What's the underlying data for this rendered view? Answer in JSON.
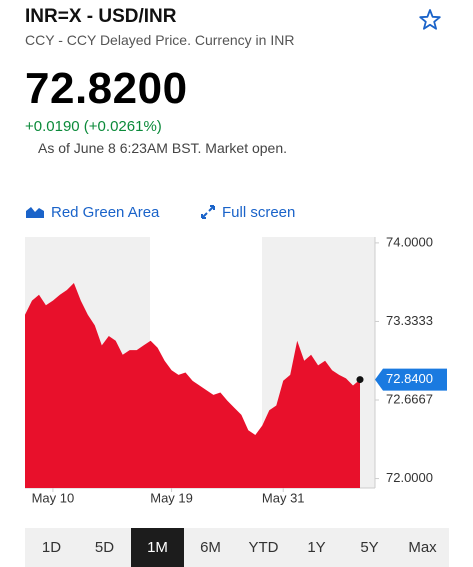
{
  "header": {
    "title": "INR=X - USD/INR",
    "subtitle": "CCY - CCY Delayed Price. Currency in INR"
  },
  "quote": {
    "price": "72.8200",
    "change": "+0.0190 (+0.0261%)",
    "as_of": "As of June 8 6:23AM BST. Market open."
  },
  "toolbar": {
    "chart_style": "Red Green Area",
    "full_screen": "Full screen"
  },
  "chart": {
    "type": "area",
    "color": "#e8102b",
    "categories": [
      null,
      null,
      null,
      null,
      "May 10",
      null,
      null,
      null,
      null,
      null,
      null,
      null,
      null,
      null,
      null,
      null,
      null,
      null,
      null,
      null,
      null,
      "May 19",
      null,
      null,
      null,
      null,
      null,
      null,
      null,
      null,
      null,
      null,
      null,
      null,
      null,
      null,
      null,
      "May 31",
      null,
      null,
      null,
      null,
      null,
      null,
      null,
      null,
      null,
      null,
      null
    ],
    "values": [
      73.39,
      73.51,
      73.56,
      73.47,
      73.51,
      73.56,
      73.6,
      73.66,
      73.51,
      73.39,
      73.3,
      73.13,
      73.21,
      73.17,
      73.05,
      73.09,
      73.09,
      73.13,
      73.17,
      73.11,
      73.0,
      72.92,
      72.88,
      72.9,
      72.83,
      72.79,
      72.75,
      72.71,
      72.73,
      72.66,
      72.6,
      72.54,
      72.41,
      72.37,
      72.45,
      72.58,
      72.62,
      72.83,
      72.88,
      73.17,
      73.0,
      73.05,
      72.96,
      73.0,
      72.92,
      72.88,
      72.85,
      72.79,
      72.84
    ],
    "marker_label": "72.8400",
    "ylim": [
      71.92,
      74.05
    ],
    "yticks": [
      {
        "value": 74,
        "label": "74.0000"
      },
      {
        "value": 73.3333,
        "label": "73.3333"
      },
      {
        "value": 72.6667,
        "label": "72.6667"
      },
      {
        "value": 72,
        "label": "72.0000"
      }
    ]
  },
  "ranges": {
    "items": [
      "1D",
      "5D",
      "1M",
      "6M",
      "YTD",
      "1Y",
      "5Y",
      "Max"
    ],
    "selected": "1M"
  }
}
